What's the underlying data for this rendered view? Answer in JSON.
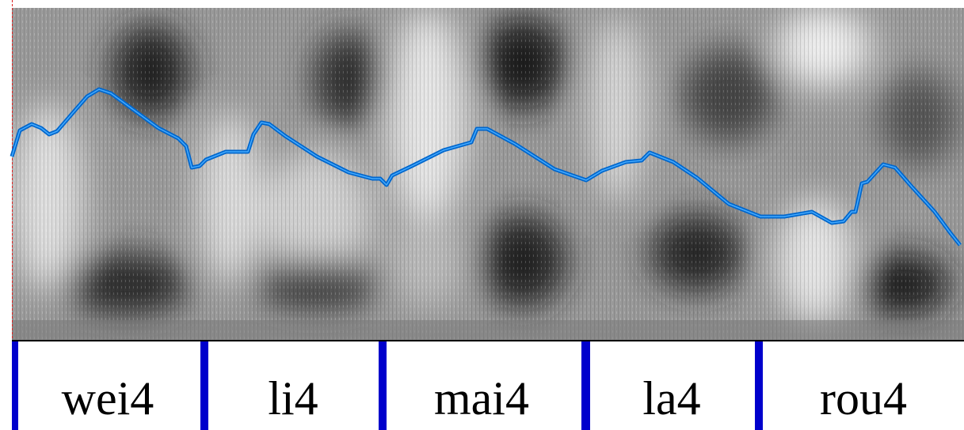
{
  "tier": {
    "syllables": [
      "wei4",
      "li4",
      "mai4",
      "la4",
      "rou4"
    ]
  }
}
